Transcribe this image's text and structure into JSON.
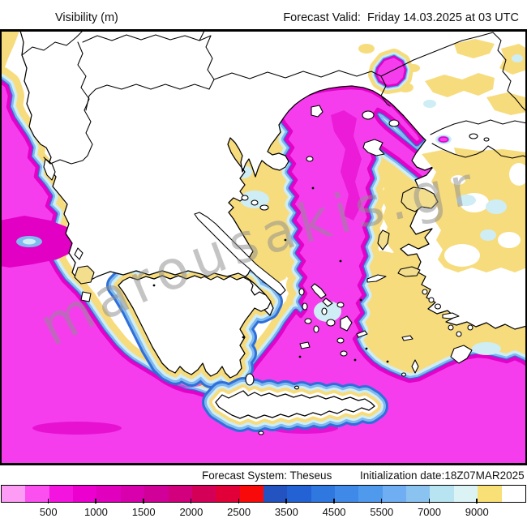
{
  "header": {
    "product_label": "Visibility (m)",
    "valid_label": "Forecast Valid:  Friday 14.03.2025 at 03 UTC"
  },
  "footer": {
    "system_label": "Forecast System: Theseus",
    "init_label": "Initialization date:18Z07MAR2025"
  },
  "watermark": {
    "text": "marousakis.gr"
  },
  "colorbar": {
    "unit": "m",
    "segment_colors": [
      "#FC9CF5",
      "#FB4FF0",
      "#F414DF",
      "#EC00D0",
      "#E000BE",
      "#D800AC",
      "#D00098",
      "#D2007C",
      "#D40058",
      "#E20038",
      "#F90A0A",
      "#2353C0",
      "#2262D4",
      "#2E78E0",
      "#3F8AE8",
      "#4F9AEC",
      "#6FAEF2",
      "#8AC2F0",
      "#B7E4F0",
      "#DCF3F6",
      "#F8DF76",
      "#FFFFFF"
    ],
    "tick_labels": [
      "500",
      "1000",
      "1500",
      "2000",
      "2500",
      "3500",
      "4500",
      "5500",
      "7000",
      "9000"
    ],
    "ticks_every_n_segments": 2
  },
  "palette": {
    "sea": "#F53DEE",
    "seaDeep": "#E100C4",
    "rim": "#E202C8",
    "yellow": "#F7DC7D",
    "cyan": "#CFEDF5",
    "ltblue": "#7FB9EF",
    "blue": "#2F6FD9",
    "land": "#FFFFFF",
    "coast": "#000000",
    "islandYellow": "#F3DE8E",
    "watermark": "#8F8F8F"
  }
}
